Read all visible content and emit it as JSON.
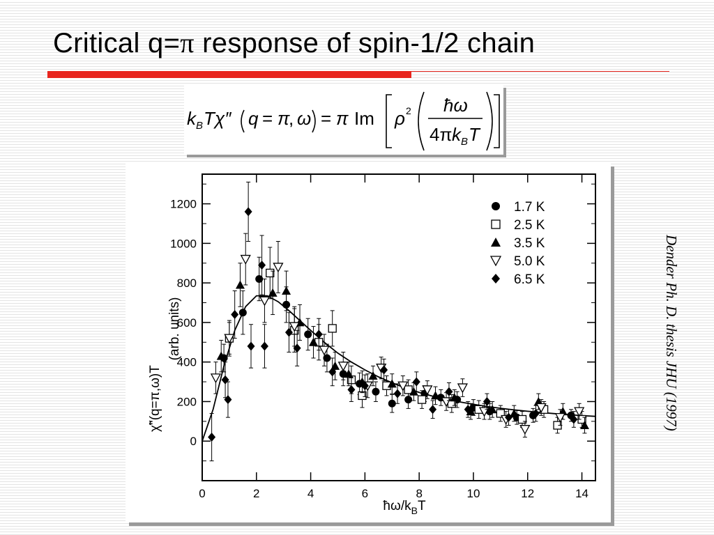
{
  "slide": {
    "title_text": "Critical q=",
    "title_pi": "π",
    "title_rest": " response of spin-1/2 chain",
    "formula": {
      "kB": "k",
      "B": "B",
      "T": "T",
      "chi": "χ″",
      "q": "q",
      "eq": "=",
      "pi": "π",
      "comma": ",",
      "omega": "ω",
      "Im": "Im",
      "rho": "ρ",
      "two": "2",
      "hbar_omega": "ħω",
      "four_pi": "4π"
    },
    "citation": "Dender Ph. D. thesis JHU (1997)"
  },
  "chart_data": {
    "type": "scatter",
    "xlabel_main": "ħω/k",
    "xlabel_sub": "B",
    "xlabel_tail": "T",
    "ylabel_main": "χ̃\"(q=π,ω)T",
    "ylabel_unit": "(arb. units)",
    "xlim": [
      0,
      14.5
    ],
    "ylim": [
      -200,
      1350
    ],
    "xticks": [
      0,
      2,
      4,
      6,
      8,
      10,
      12,
      14
    ],
    "yticks": [
      0,
      200,
      400,
      600,
      800,
      1000,
      1200
    ],
    "legend_position": "top-right",
    "colors": {
      "marker": "#000000",
      "axes": "#000000"
    },
    "series": [
      {
        "name": "1.7 K",
        "marker": "circle",
        "points": [
          [
            0.8,
            420,
            70
          ],
          [
            1.5,
            650,
            110
          ],
          [
            2.1,
            820,
            110
          ],
          [
            3.1,
            690,
            90
          ],
          [
            3.9,
            540,
            80
          ],
          [
            4.6,
            420,
            70
          ],
          [
            5.2,
            340,
            60
          ],
          [
            5.8,
            290,
            55
          ],
          [
            6.4,
            250,
            50
          ],
          [
            7.0,
            190,
            45
          ],
          [
            7.6,
            210,
            45
          ],
          [
            8.2,
            240,
            40
          ],
          [
            8.8,
            220,
            40
          ],
          [
            9.4,
            210,
            40
          ],
          [
            10.0,
            170,
            40
          ],
          [
            10.6,
            150,
            40
          ],
          [
            11.6,
            120,
            35
          ],
          [
            12.2,
            130,
            35
          ],
          [
            13.6,
            130,
            30
          ]
        ]
      },
      {
        "name": "2.5 K",
        "marker": "square",
        "points": [
          [
            1.0,
            520,
            80
          ],
          [
            2.5,
            850,
            130
          ],
          [
            3.4,
            560,
            110
          ],
          [
            4.3,
            500,
            90
          ],
          [
            4.8,
            570,
            90
          ],
          [
            5.5,
            310,
            70
          ],
          [
            5.9,
            230,
            60
          ],
          [
            6.8,
            280,
            50
          ],
          [
            7.6,
            260,
            50
          ],
          [
            8.1,
            210,
            45
          ],
          [
            9.2,
            190,
            45
          ],
          [
            10.2,
            160,
            45
          ],
          [
            11.0,
            140,
            40
          ],
          [
            11.8,
            110,
            40
          ],
          [
            12.6,
            160,
            40
          ],
          [
            13.1,
            80,
            40
          ],
          [
            14.0,
            110,
            40
          ]
        ]
      },
      {
        "name": "3.5 K",
        "marker": "triangle",
        "points": [
          [
            0.7,
            430,
            80
          ],
          [
            1.4,
            790,
            110
          ],
          [
            2.6,
            750,
            110
          ],
          [
            3.1,
            760,
            100
          ],
          [
            3.6,
            600,
            90
          ],
          [
            4.1,
            500,
            80
          ],
          [
            4.9,
            380,
            70
          ],
          [
            5.4,
            340,
            60
          ],
          [
            5.9,
            300,
            55
          ],
          [
            6.3,
            330,
            50
          ],
          [
            7.0,
            290,
            50
          ],
          [
            7.8,
            250,
            45
          ],
          [
            8.6,
            230,
            45
          ],
          [
            9.3,
            220,
            40
          ],
          [
            9.9,
            150,
            40
          ],
          [
            10.7,
            160,
            40
          ],
          [
            11.5,
            140,
            40
          ],
          [
            12.4,
            200,
            40
          ],
          [
            13.3,
            150,
            40
          ],
          [
            14.1,
            80,
            40
          ]
        ]
      },
      {
        "name": "5.0 K",
        "marker": "triangle-down",
        "points": [
          [
            0.5,
            320,
            80
          ],
          [
            1.0,
            520,
            90
          ],
          [
            1.6,
            920,
            130
          ],
          [
            2.3,
            710,
            110
          ],
          [
            2.8,
            880,
            130
          ],
          [
            3.4,
            580,
            100
          ],
          [
            4.5,
            460,
            80
          ],
          [
            5.2,
            380,
            70
          ],
          [
            6.1,
            280,
            60
          ],
          [
            6.6,
            370,
            55
          ],
          [
            7.4,
            280,
            50
          ],
          [
            8.3,
            260,
            45
          ],
          [
            9.0,
            200,
            45
          ],
          [
            9.6,
            270,
            45
          ],
          [
            10.4,
            150,
            40
          ],
          [
            11.2,
            110,
            40
          ],
          [
            11.9,
            60,
            40
          ],
          [
            12.5,
            170,
            40
          ],
          [
            13.2,
            120,
            40
          ],
          [
            13.9,
            150,
            40
          ]
        ]
      },
      {
        "name": "6.5 K",
        "marker": "diamond",
        "points": [
          [
            0.35,
            20,
            120
          ],
          [
            0.85,
            310,
            90
          ],
          [
            0.95,
            210,
            90
          ],
          [
            1.2,
            640,
            120
          ],
          [
            1.7,
            1160,
            150
          ],
          [
            1.8,
            480,
            110
          ],
          [
            2.2,
            890,
            150
          ],
          [
            2.3,
            480,
            110
          ],
          [
            3.2,
            550,
            100
          ],
          [
            3.5,
            470,
            90
          ],
          [
            4.3,
            540,
            80
          ],
          [
            4.8,
            350,
            70
          ],
          [
            5.5,
            260,
            60
          ],
          [
            6.0,
            280,
            55
          ],
          [
            6.7,
            360,
            55
          ],
          [
            7.2,
            240,
            50
          ],
          [
            7.9,
            300,
            50
          ],
          [
            8.5,
            160,
            45
          ],
          [
            9.1,
            250,
            45
          ],
          [
            9.8,
            160,
            40
          ],
          [
            10.5,
            200,
            40
          ],
          [
            11.3,
            120,
            40
          ],
          [
            12.3,
            140,
            40
          ],
          [
            13.7,
            110,
            40
          ]
        ]
      }
    ],
    "fit_curve": [
      [
        0,
        0
      ],
      [
        0.4,
        160
      ],
      [
        0.8,
        380
      ],
      [
        1.2,
        560
      ],
      [
        1.6,
        680
      ],
      [
        2.0,
        735
      ],
      [
        2.4,
        735
      ],
      [
        2.8,
        705
      ],
      [
        3.2,
        660
      ],
      [
        3.6,
        610
      ],
      [
        4.0,
        560
      ],
      [
        4.5,
        500
      ],
      [
        5.0,
        445
      ],
      [
        5.5,
        400
      ],
      [
        6.0,
        360
      ],
      [
        6.5,
        325
      ],
      [
        7.0,
        295
      ],
      [
        7.5,
        268
      ],
      [
        8.0,
        246
      ],
      [
        8.5,
        227
      ],
      [
        9.0,
        211
      ],
      [
        9.5,
        198
      ],
      [
        10.0,
        186
      ],
      [
        10.5,
        175
      ],
      [
        11.0,
        166
      ],
      [
        11.5,
        158
      ],
      [
        12.0,
        151
      ],
      [
        12.5,
        145
      ],
      [
        13.0,
        139
      ],
      [
        13.5,
        134
      ],
      [
        14.0,
        129
      ],
      [
        14.5,
        125
      ]
    ]
  }
}
